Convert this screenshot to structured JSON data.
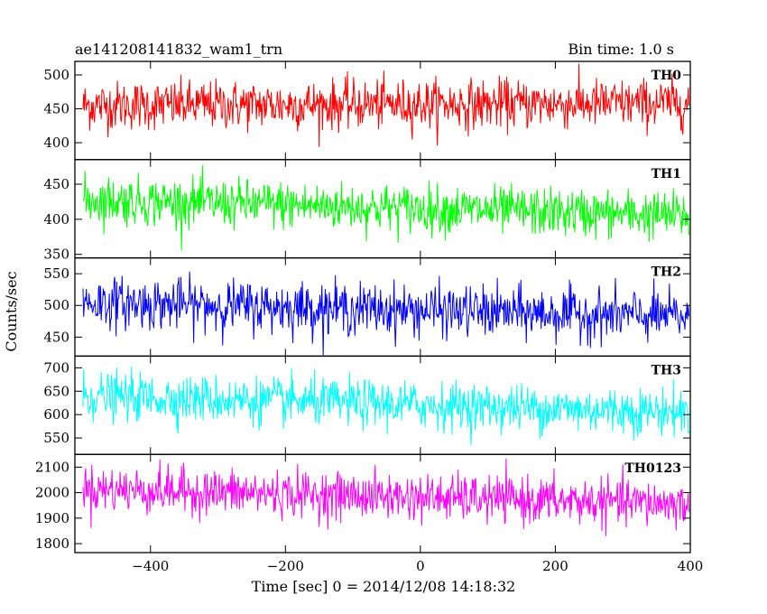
{
  "header": {
    "title": "ae141208141832_wam1_trn",
    "bin_time": "Bin time: 1.0 s"
  },
  "chart_data": {
    "type": "line",
    "title": "ae141208141832_wam1_trn",
    "xlabel": "Time [sec] 0 = 2014/12/08 14:18:32",
    "ylabel": "Counts/sec",
    "xlim": [
      -512,
      400
    ],
    "x_ticks": [
      -400,
      -200,
      0,
      200,
      400
    ],
    "x_tick_labels": [
      "−400",
      "−200",
      "0",
      "200",
      "400"
    ],
    "bin_seconds": 1.0,
    "series": [
      {
        "name": "TH0",
        "color": "#ff0000",
        "ylim": [
          375,
          520
        ],
        "y_ticks": [
          400,
          450,
          500
        ],
        "mean_start": 455,
        "mean_end": 458,
        "noise": 18
      },
      {
        "name": "TH1",
        "color": "#00ff00",
        "ylim": [
          345,
          485
        ],
        "y_ticks": [
          350,
          400,
          450
        ],
        "mean_start": 428,
        "mean_end": 405,
        "noise": 17
      },
      {
        "name": "TH2",
        "color": "#0000ff",
        "ylim": [
          420,
          575
        ],
        "y_ticks": [
          450,
          500,
          550
        ],
        "mean_start": 505,
        "mean_end": 482,
        "noise": 20
      },
      {
        "name": "TH3",
        "color": "#00ffff",
        "ylim": [
          515,
          725
        ],
        "y_ticks": [
          550,
          600,
          650,
          700
        ],
        "mean_start": 640,
        "mean_end": 605,
        "noise": 25
      },
      {
        "name": "TH0123",
        "color": "#ff00ff",
        "ylim": [
          1765,
          2150
        ],
        "y_ticks": [
          1800,
          1900,
          2000,
          2100
        ],
        "mean_start": 2015,
        "mean_end": 1955,
        "noise": 45
      }
    ]
  }
}
